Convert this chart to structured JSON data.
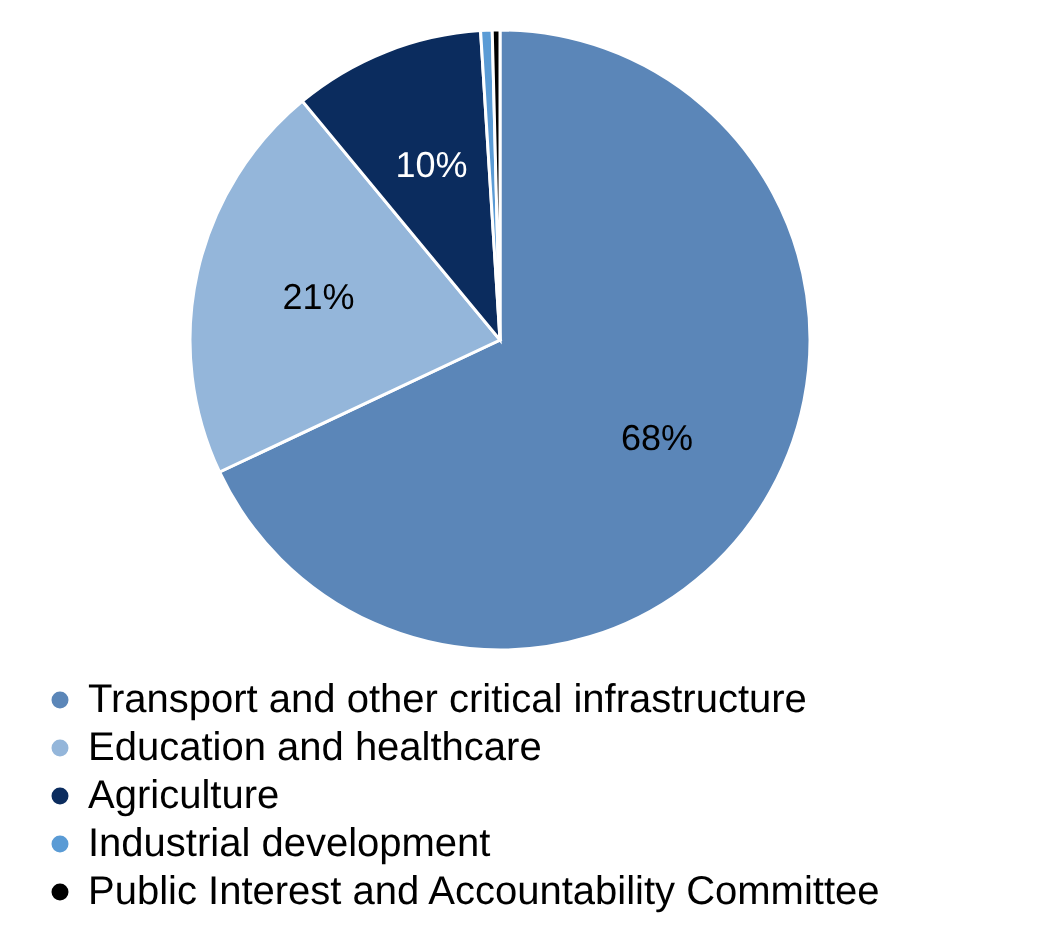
{
  "chart_data": {
    "type": "pie",
    "categories": [
      "Transport and other critical infrastructure",
      "Education and healthcare",
      "Agriculture",
      "Industrial development",
      "Public Interest and Accountability Committee"
    ],
    "values": [
      68,
      21,
      10,
      0.6,
      0.4
    ],
    "colors": [
      "#5b86b8",
      "#94b6da",
      "#0b2c5e",
      "#5a9bd5",
      "#000000"
    ],
    "value_labels": [
      "68%",
      "21%",
      "10%",
      null,
      null
    ],
    "legend": "bottom"
  }
}
